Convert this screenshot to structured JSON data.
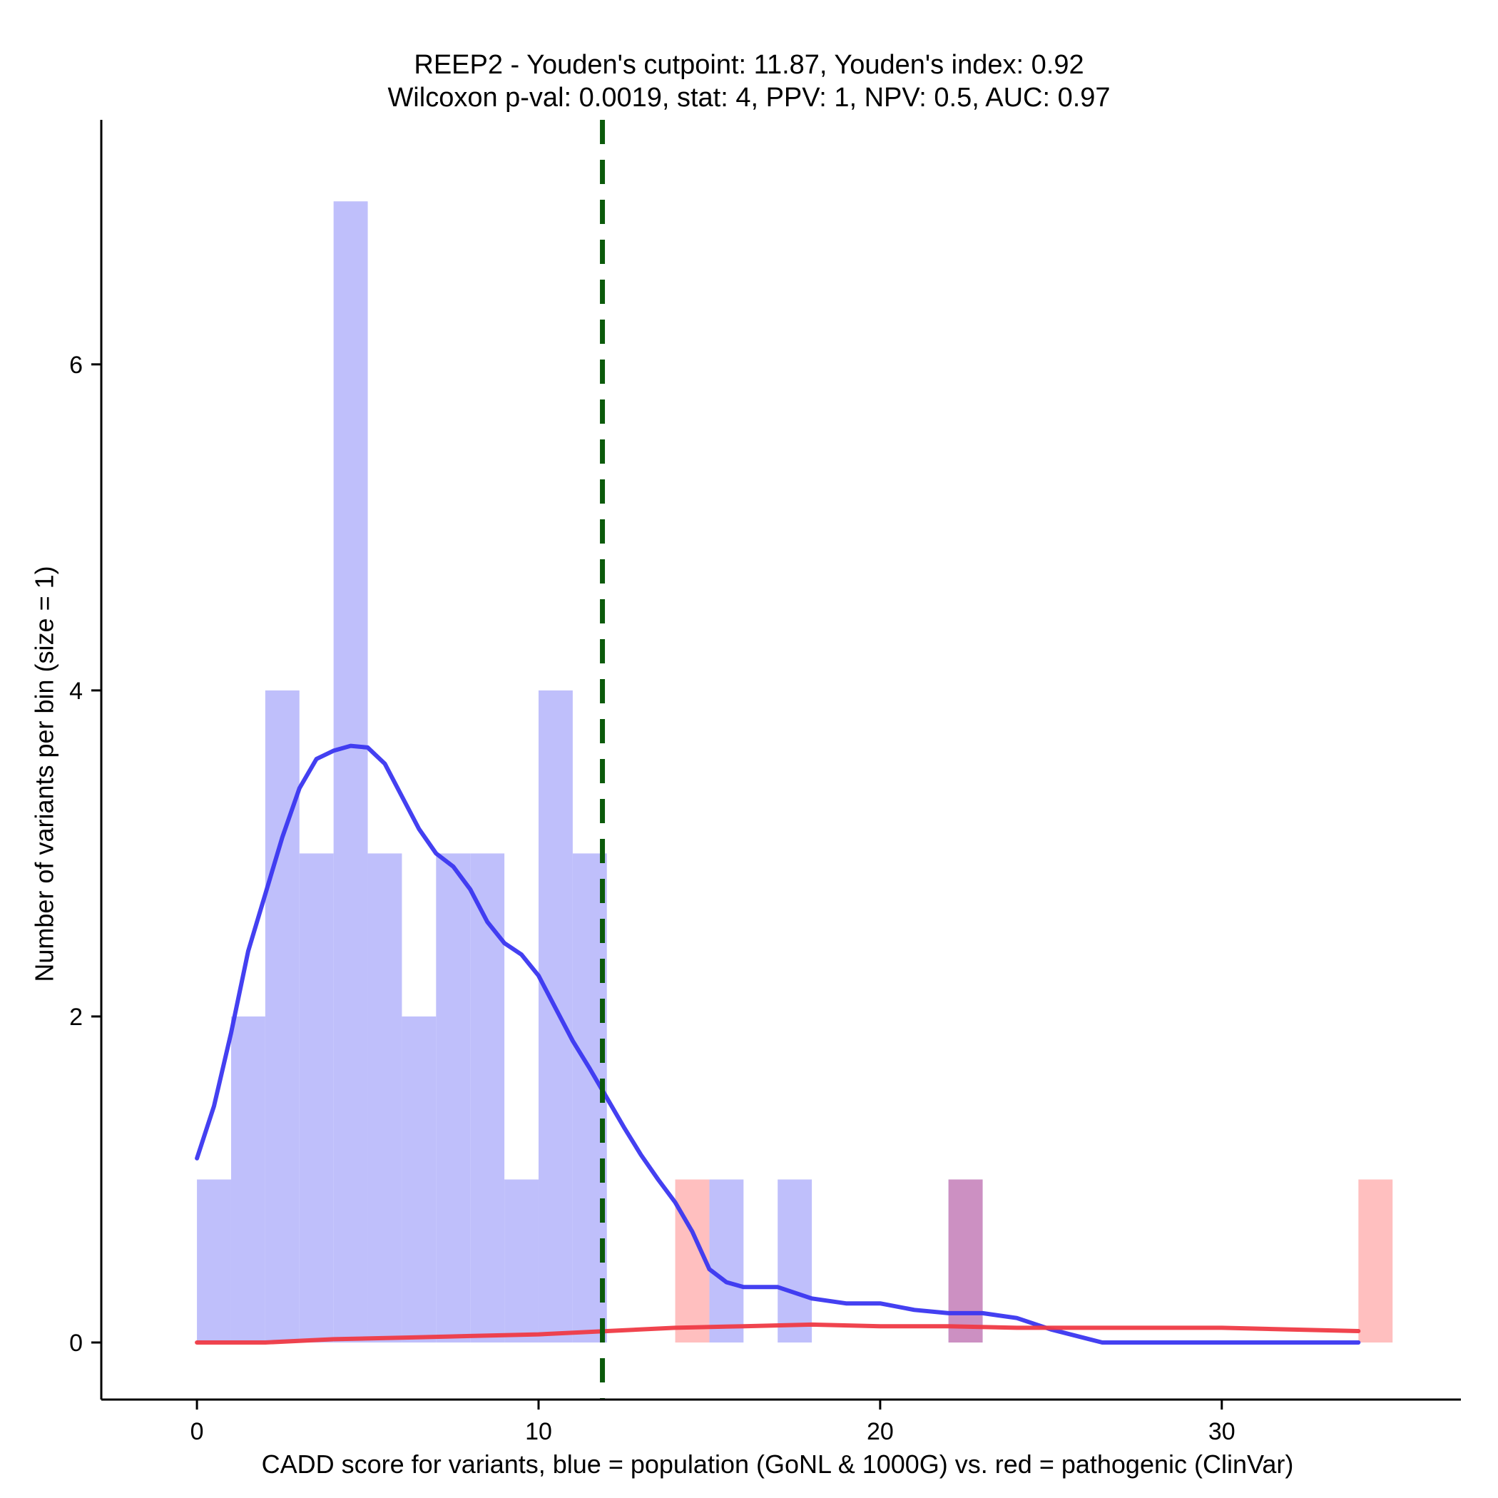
{
  "chart_data": {
    "type": "bar",
    "title": "REEP2 - Youden's cutpoint: 11.87, Youden's index: 0.92",
    "subtitle": "Wilcoxon p-val: 0.0019, stat: 4, PPV: 1, NPV: 0.5, AUC: 0.97",
    "xlabel": "CADD score for variants, blue = population (GoNL & 1000G) vs. red = pathogenic (ClinVar)",
    "ylabel": "Number of variants per bin (size = 1)",
    "xlim": [
      -2.8,
      37
    ],
    "ylim": [
      -0.35,
      7.5
    ],
    "x_ticks": [
      0,
      10,
      20,
      30
    ],
    "y_ticks": [
      0,
      2,
      4,
      6
    ],
    "grid": false,
    "cutpoint": 11.87,
    "bin_width": 1,
    "series": [
      {
        "color": "#bfbffb",
        "bins": [
          {
            "x0": 0,
            "count": 1
          },
          {
            "x0": 1,
            "count": 2
          },
          {
            "x0": 2,
            "count": 4
          },
          {
            "x0": 3,
            "count": 3
          },
          {
            "x0": 4,
            "count": 7
          },
          {
            "x0": 5,
            "count": 3
          },
          {
            "x0": 6,
            "count": 2
          },
          {
            "x0": 7,
            "count": 3
          },
          {
            "x0": 8,
            "count": 3
          },
          {
            "x0": 9,
            "count": 1
          },
          {
            "x0": 10,
            "count": 4
          },
          {
            "x0": 11,
            "count": 3
          },
          {
            "x0": 15,
            "count": 1
          },
          {
            "x0": 17,
            "count": 1
          },
          {
            "x0": 22,
            "count": 1
          }
        ]
      },
      {
        "color": "#ffbfbf",
        "bins": [
          {
            "x0": 14,
            "count": 1
          },
          {
            "x0": 22,
            "count": 1
          },
          {
            "x0": 34,
            "count": 1
          }
        ]
      }
    ],
    "overlap_color": "#cc90c2",
    "density_curves": [
      {
        "color": "#3a36f0",
        "points": [
          [
            0,
            1.13
          ],
          [
            0.5,
            1.45
          ],
          [
            1,
            1.9
          ],
          [
            1.5,
            2.4
          ],
          [
            2,
            2.75
          ],
          [
            2.5,
            3.1
          ],
          [
            3,
            3.4
          ],
          [
            3.5,
            3.58
          ],
          [
            4,
            3.63
          ],
          [
            4.5,
            3.66
          ],
          [
            5,
            3.65
          ],
          [
            5.5,
            3.55
          ],
          [
            6,
            3.35
          ],
          [
            6.5,
            3.15
          ],
          [
            7,
            3.0
          ],
          [
            7.5,
            2.92
          ],
          [
            8,
            2.78
          ],
          [
            8.5,
            2.58
          ],
          [
            9,
            2.45
          ],
          [
            9.5,
            2.38
          ],
          [
            10,
            2.25
          ],
          [
            10.5,
            2.05
          ],
          [
            11,
            1.85
          ],
          [
            11.5,
            1.68
          ],
          [
            12,
            1.5
          ],
          [
            12.5,
            1.32
          ],
          [
            13,
            1.15
          ],
          [
            13.5,
            1.0
          ],
          [
            14,
            0.86
          ],
          [
            14.5,
            0.68
          ],
          [
            15,
            0.45
          ],
          [
            15.5,
            0.37
          ],
          [
            16,
            0.34
          ],
          [
            17,
            0.34
          ],
          [
            18,
            0.27
          ],
          [
            19,
            0.24
          ],
          [
            20,
            0.24
          ],
          [
            21,
            0.2
          ],
          [
            22,
            0.18
          ],
          [
            23,
            0.18
          ],
          [
            24,
            0.15
          ],
          [
            25,
            0.08
          ],
          [
            26.5,
            0.0
          ],
          [
            34,
            0.0
          ]
        ]
      },
      {
        "color": "#ef3a44",
        "points": [
          [
            0,
            0.0
          ],
          [
            2,
            0.0
          ],
          [
            4,
            0.02
          ],
          [
            6,
            0.03
          ],
          [
            8,
            0.04
          ],
          [
            10,
            0.05
          ],
          [
            12,
            0.07
          ],
          [
            14,
            0.09
          ],
          [
            16,
            0.1
          ],
          [
            18,
            0.11
          ],
          [
            20,
            0.1
          ],
          [
            22,
            0.1
          ],
          [
            24,
            0.09
          ],
          [
            26,
            0.09
          ],
          [
            28,
            0.09
          ],
          [
            30,
            0.09
          ],
          [
            32,
            0.08
          ],
          [
            34,
            0.07
          ]
        ]
      }
    ]
  }
}
